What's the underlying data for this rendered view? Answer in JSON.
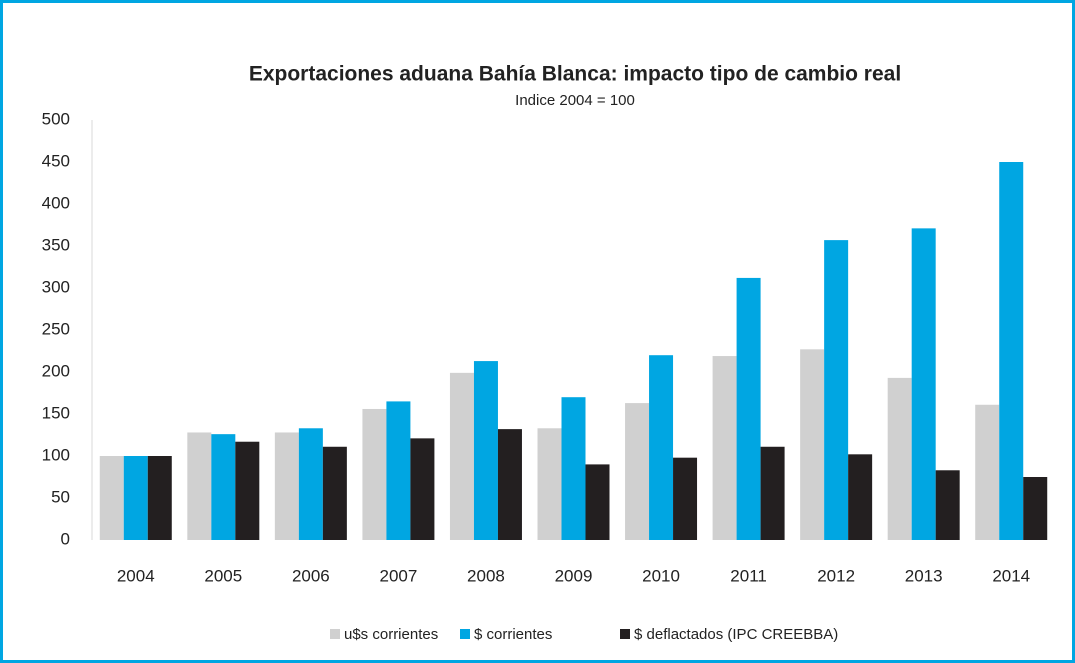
{
  "chart_data": {
    "type": "bar",
    "title": "Exportaciones aduana Bahía Blanca: impacto tipo de cambio real",
    "subtitle": "Indice 2004 = 100",
    "categories": [
      "2004",
      "2005",
      "2006",
      "2007",
      "2008",
      "2009",
      "2010",
      "2011",
      "2012",
      "2013",
      "2014"
    ],
    "series": [
      {
        "name": "u$s corrientes",
        "color": "#d0d0d0",
        "values": [
          100,
          128,
          128,
          156,
          199,
          133,
          163,
          219,
          227,
          193,
          161
        ]
      },
      {
        "name": "$ corrientes",
        "color": "#00a6e2",
        "values": [
          100,
          126,
          133,
          165,
          213,
          170,
          220,
          312,
          357,
          371,
          450
        ]
      },
      {
        "name": "$ deflactados (IPC CREEBBA)",
        "color": "#231f20",
        "values": [
          100,
          117,
          111,
          121,
          132,
          90,
          98,
          111,
          102,
          83,
          75
        ]
      }
    ],
    "ylim": [
      0,
      500
    ],
    "yticks": [
      0,
      50,
      100,
      150,
      200,
      250,
      300,
      350,
      400,
      450,
      500
    ],
    "grid": false,
    "legend": "bottom"
  }
}
